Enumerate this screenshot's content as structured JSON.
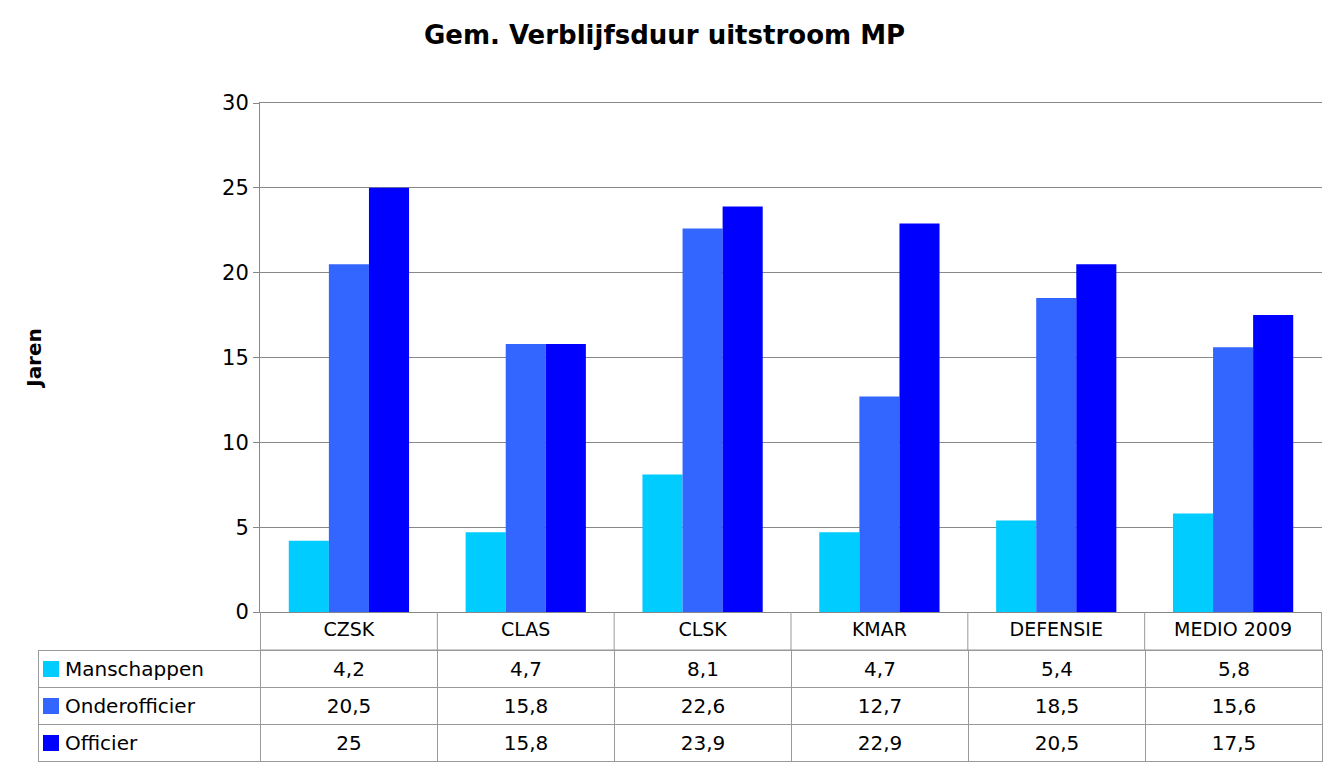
{
  "chart_data": {
    "type": "bar",
    "title": "Gem. Verblijfsduur uitstroom MP",
    "y_label": "Jaren",
    "categories": [
      "CZSK",
      "CLAS",
      "CLSK",
      "KMAR",
      "DEFENSIE",
      "MEDIO 2009"
    ],
    "series": [
      {
        "name": "Manschappen",
        "color": "#00ccff",
        "values": [
          4.2,
          4.7,
          8.1,
          4.7,
          5.4,
          5.8
        ],
        "value_labels": [
          "4,2",
          "4,7",
          "8,1",
          "4,7",
          "5,4",
          "5,8"
        ]
      },
      {
        "name": "Onderofficier",
        "color": "#3366ff",
        "values": [
          20.5,
          15.8,
          22.6,
          12.7,
          18.5,
          15.6
        ],
        "value_labels": [
          "20,5",
          "15,8",
          "22,6",
          "12,7",
          "18,5",
          "15,6"
        ]
      },
      {
        "name": "Officier",
        "color": "#0000ff",
        "values": [
          25,
          15.8,
          23.9,
          22.9,
          20.5,
          17.5
        ],
        "value_labels": [
          "25",
          "15,8",
          "23,9",
          "22,9",
          "20,5",
          "17,5"
        ]
      }
    ],
    "ylim": [
      0,
      30
    ],
    "yticks": [
      0,
      5,
      10,
      15,
      20,
      25,
      30
    ],
    "grid": true,
    "legend": "bottom",
    "data_labels": true
  }
}
